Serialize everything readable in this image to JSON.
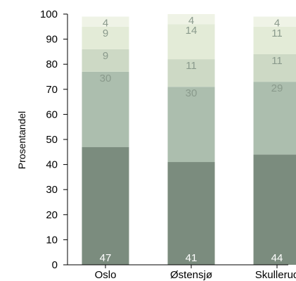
{
  "chart_data": {
    "type": "bar",
    "stacked": true,
    "categories": [
      "Oslo",
      "Østensjø",
      "Skullerud"
    ],
    "series": [
      {
        "values": [
          47,
          41,
          44
        ],
        "color": "#7b8c7e",
        "label_color": "#ffffff"
      },
      {
        "values": [
          30,
          30,
          29
        ],
        "color": "#acbeae",
        "label_color": "#8a9a8c"
      },
      {
        "values": [
          9,
          11,
          11
        ],
        "color": "#cdd9c5",
        "label_color": "#8a9a8c"
      },
      {
        "values": [
          9,
          14,
          11
        ],
        "color": "#e3ebd7",
        "label_color": "#8a9a8c"
      },
      {
        "values": [
          4,
          4,
          4
        ],
        "color": "#eff3e6",
        "label_color": "#8a9a8c"
      }
    ],
    "ylabel": "Prosentandel",
    "ylim": [
      0,
      100
    ],
    "yticks": [
      0,
      10,
      20,
      30,
      40,
      50,
      60,
      70,
      80,
      90,
      100
    ],
    "grid": false,
    "legend": "none"
  }
}
